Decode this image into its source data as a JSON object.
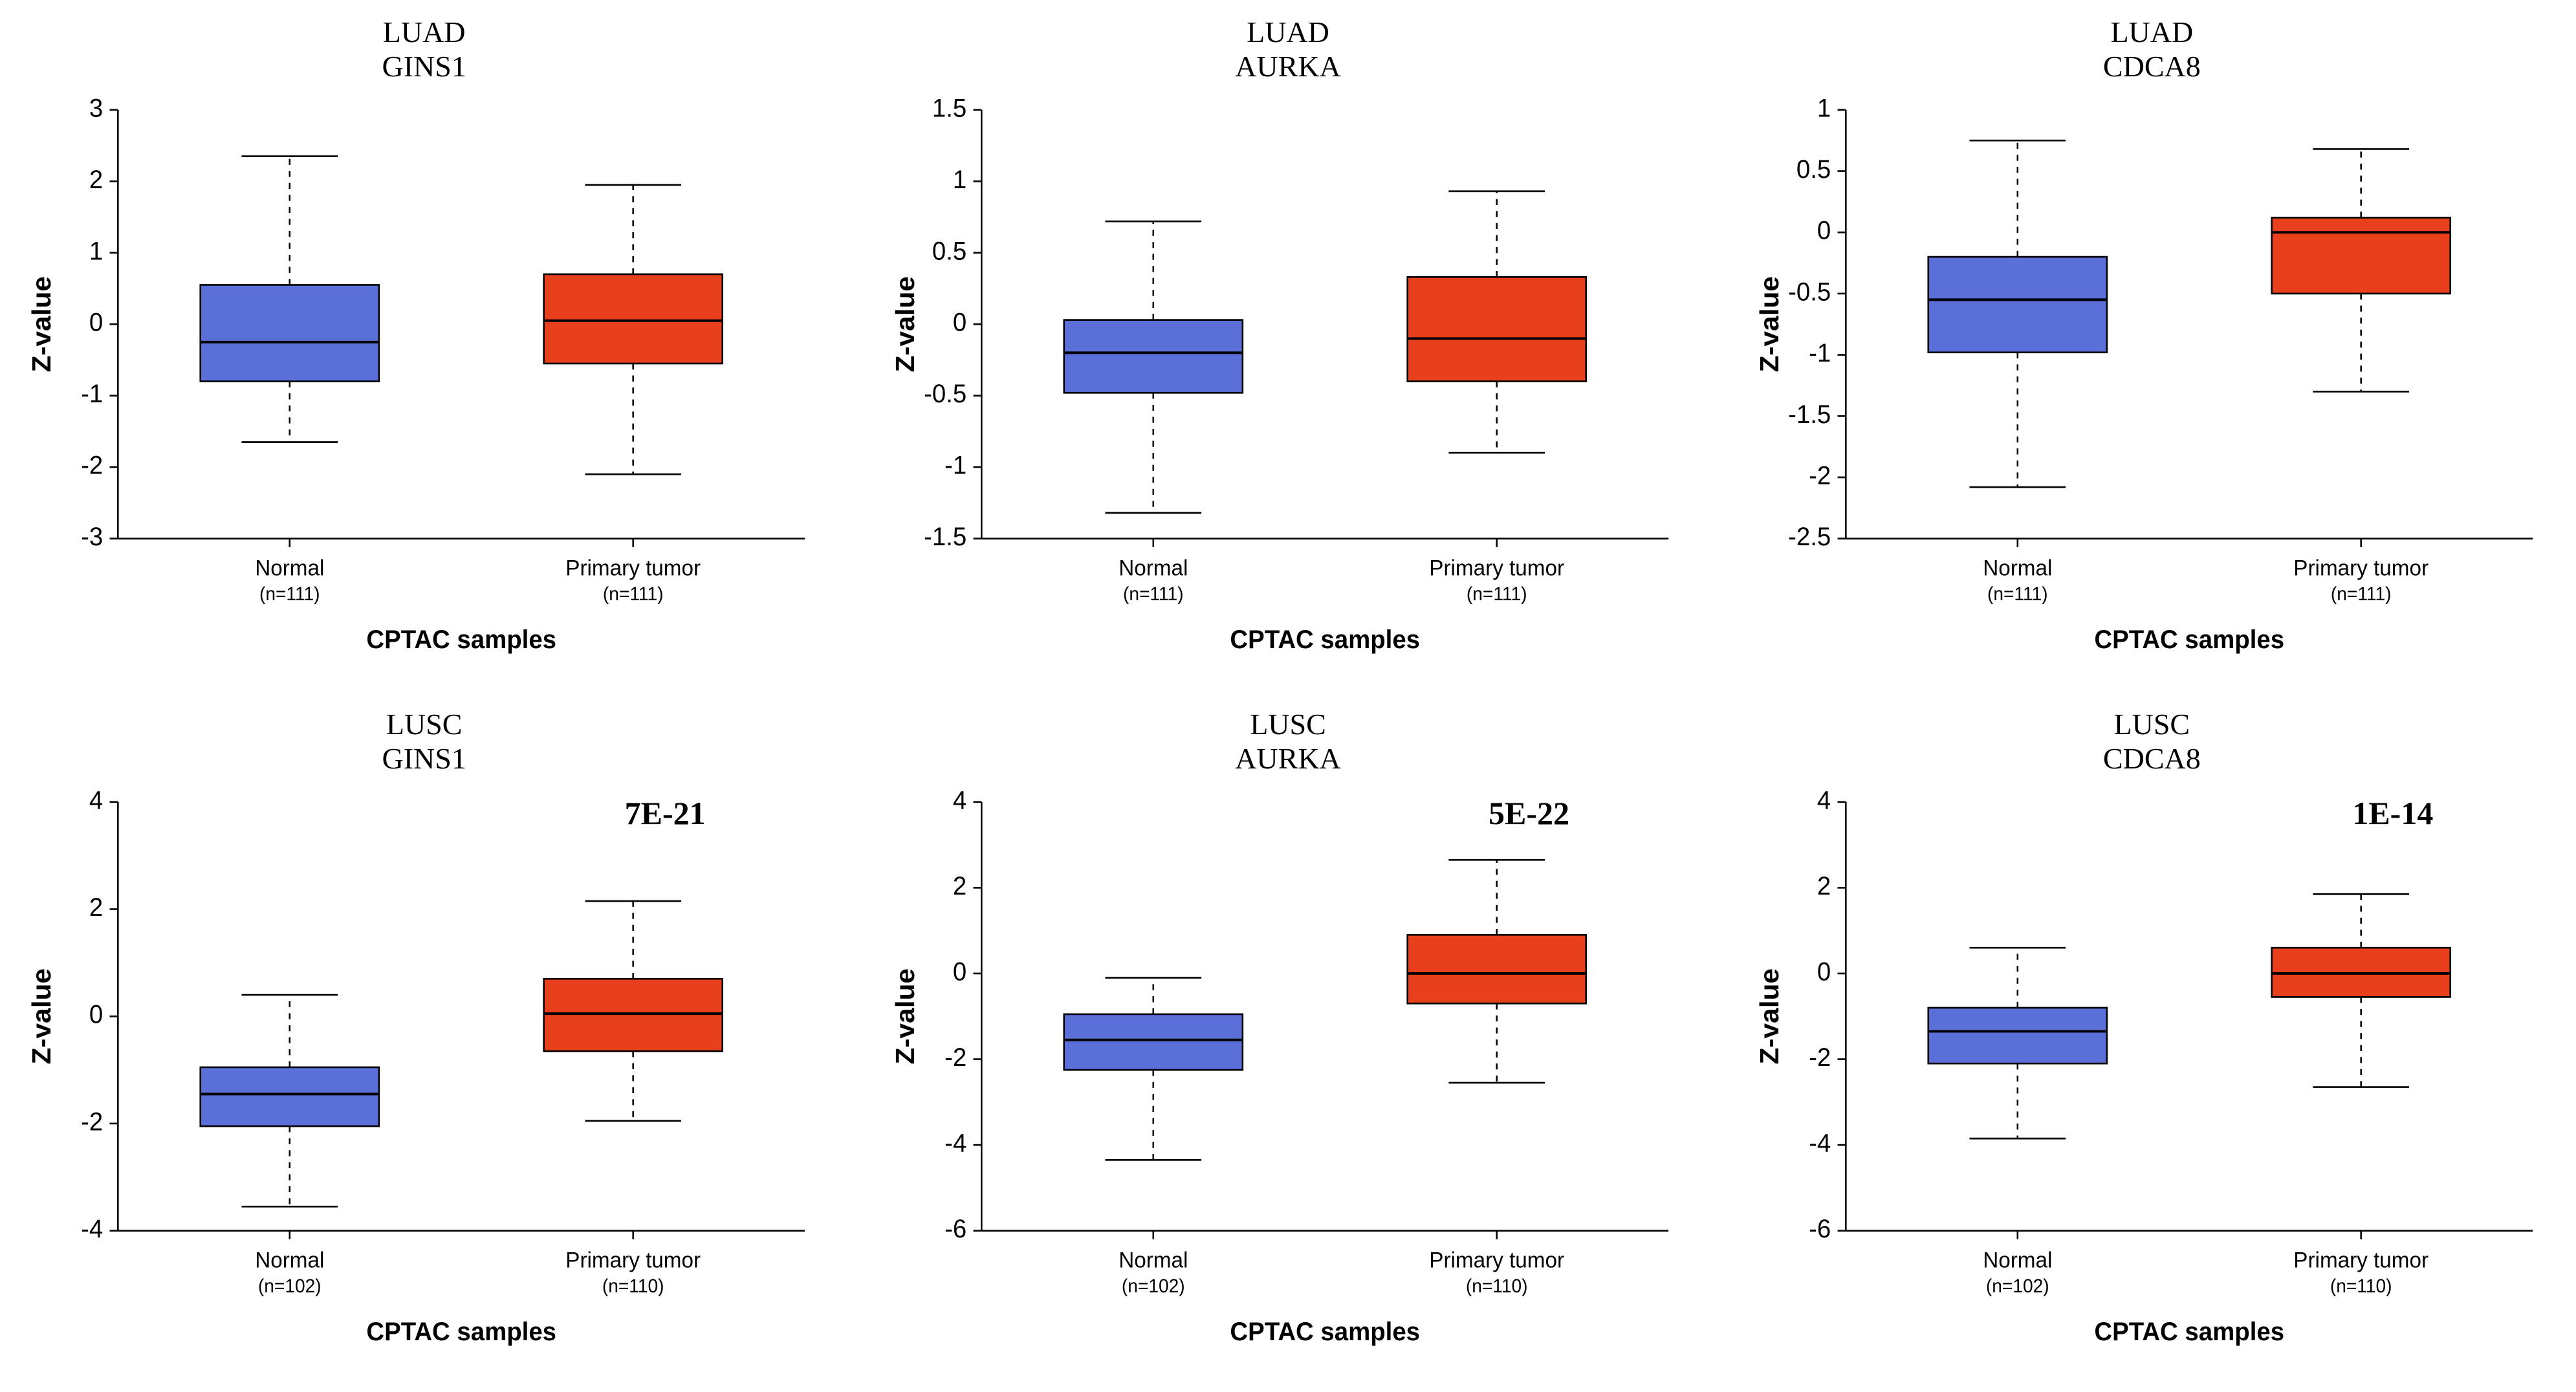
{
  "colors": {
    "normal": "#5a6fd8",
    "tumor": "#e8401c",
    "axis": "#000000",
    "text": "#000000",
    "bg": "#ffffff"
  },
  "layout": {
    "rows": 2,
    "cols": 3,
    "panelAspect": 1.28,
    "titleFontFamily": "Times New Roman",
    "titleFontSize": 46,
    "axisLabelFontSize": 32,
    "tickFontSize": 30,
    "categoryFontSize": 26,
    "categoryNFontSize": 22,
    "xlabelFontSize": 30,
    "pvalFontSize": 50,
    "boxWidthFrac": 0.52,
    "whiskerCapFrac": 0.28,
    "boxStrokeWidth": 2,
    "whiskerStrokeWidth": 2,
    "whiskerDash": "7,7",
    "axisStrokeWidth": 2,
    "tickLen": 10
  },
  "common": {
    "ylabel": "Z-value",
    "xlabel": "CPTAC samples",
    "categories": [
      "Normal",
      "Primary tumor"
    ]
  },
  "panels": [
    {
      "id": "luad-gins1",
      "titleLines": [
        "LUAD",
        "GINS1"
      ],
      "n": [
        111,
        111
      ],
      "ylim": [
        -3,
        3
      ],
      "ytick_step": 1,
      "pvalue": null,
      "boxes": [
        {
          "min": -1.65,
          "q1": -0.8,
          "med": -0.25,
          "q3": 0.55,
          "max": 2.35,
          "color": "#5a6fd8"
        },
        {
          "min": -2.1,
          "q1": -0.55,
          "med": 0.05,
          "q3": 0.7,
          "max": 1.95,
          "color": "#e8401c"
        }
      ]
    },
    {
      "id": "luad-aurka",
      "titleLines": [
        "LUAD",
        "AURKA"
      ],
      "n": [
        111,
        111
      ],
      "ylim": [
        -1.5,
        1.5
      ],
      "ytick_step": 0.5,
      "pvalue": null,
      "boxes": [
        {
          "min": -1.32,
          "q1": -0.48,
          "med": -0.2,
          "q3": 0.03,
          "max": 0.72,
          "color": "#5a6fd8"
        },
        {
          "min": -0.9,
          "q1": -0.4,
          "med": -0.1,
          "q3": 0.33,
          "max": 0.93,
          "color": "#e8401c"
        }
      ]
    },
    {
      "id": "luad-cdca8",
      "titleLines": [
        "LUAD",
        "CDCA8"
      ],
      "n": [
        111,
        111
      ],
      "ylim": [
        -2.5,
        1.0
      ],
      "ytick_step": 0.5,
      "pvalue": null,
      "boxes": [
        {
          "min": -2.08,
          "q1": -0.98,
          "med": -0.55,
          "q3": -0.2,
          "max": 0.75,
          "color": "#5a6fd8"
        },
        {
          "min": -1.3,
          "q1": -0.5,
          "med": 0.0,
          "q3": 0.12,
          "max": 0.68,
          "color": "#e8401c"
        }
      ]
    },
    {
      "id": "lusc-gins1",
      "titleLines": [
        "LUSC",
        "GINS1"
      ],
      "n": [
        102,
        110
      ],
      "ylim": [
        -4,
        4
      ],
      "ytick_step": 2,
      "pvalue": "7E-21",
      "boxes": [
        {
          "min": -3.55,
          "q1": -2.05,
          "med": -1.45,
          "q3": -0.95,
          "max": 0.4,
          "color": "#5a6fd8"
        },
        {
          "min": -1.95,
          "q1": -0.65,
          "med": 0.05,
          "q3": 0.7,
          "max": 2.15,
          "color": "#e8401c"
        }
      ]
    },
    {
      "id": "lusc-aurka",
      "titleLines": [
        "LUSC",
        "AURKA"
      ],
      "n": [
        102,
        110
      ],
      "ylim": [
        -6,
        4
      ],
      "ytick_step": 2,
      "pvalue": "5E-22",
      "boxes": [
        {
          "min": -4.35,
          "q1": -2.25,
          "med": -1.55,
          "q3": -0.95,
          "max": -0.1,
          "color": "#5a6fd8"
        },
        {
          "min": -2.55,
          "q1": -0.7,
          "med": 0.0,
          "q3": 0.9,
          "max": 2.65,
          "color": "#e8401c"
        }
      ]
    },
    {
      "id": "lusc-cdca8",
      "titleLines": [
        "LUSC",
        "CDCA8"
      ],
      "n": [
        102,
        110
      ],
      "ylim": [
        -6,
        4
      ],
      "ytick_step": 2,
      "pvalue": "1E-14",
      "boxes": [
        {
          "min": -3.85,
          "q1": -2.1,
          "med": -1.35,
          "q3": -0.8,
          "max": 0.6,
          "color": "#5a6fd8"
        },
        {
          "min": -2.65,
          "q1": -0.55,
          "med": 0.0,
          "q3": 0.6,
          "max": 1.85,
          "color": "#e8401c"
        }
      ]
    }
  ]
}
